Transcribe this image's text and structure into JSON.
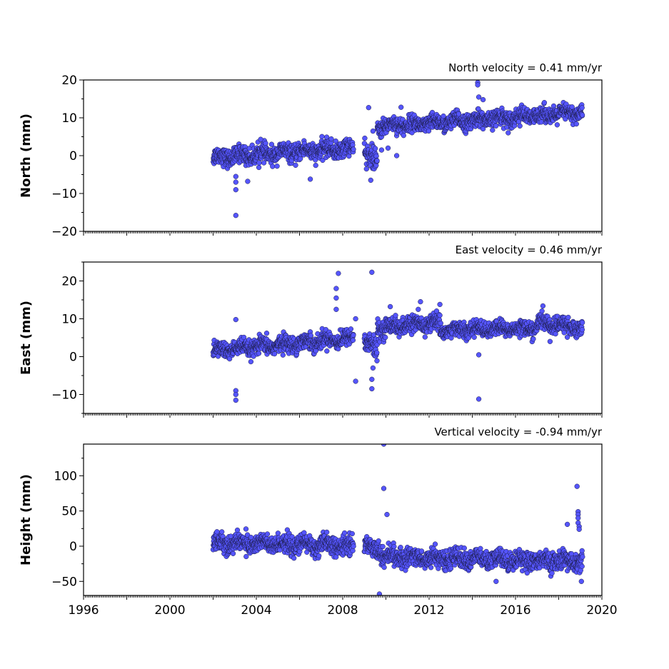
{
  "chart_data": [
    {
      "type": "scatter",
      "id": "north",
      "title": "North velocity = 0.41 mm/yr",
      "ylabel": "North (mm)",
      "xlim": [
        1996,
        2020
      ],
      "ylim": [
        -20,
        20
      ],
      "yticks": [
        20,
        10,
        0,
        -10,
        -20
      ],
      "ytick_labels": [
        "20",
        "10",
        "0",
        "−10",
        "−20"
      ],
      "xticks": [
        1996,
        1998,
        2000,
        2002,
        2004,
        2006,
        2008,
        2010,
        2012,
        2014,
        2016,
        2018,
        2020
      ],
      "xtick_labels": [],
      "grid": false,
      "segments": [
        {
          "t0": 2002.0,
          "t1": 2008.5,
          "v0": -0.5,
          "v1": 2.0,
          "noise": 1.4
        },
        {
          "t0": 2009.0,
          "t1": 2009.6,
          "v0": 0.0,
          "v1": -1.5,
          "noise": 1.8
        },
        {
          "t0": 2009.6,
          "t1": 2010.8,
          "v0": 7.5,
          "v1": 8.5,
          "noise": 1.3
        },
        {
          "t0": 2010.8,
          "t1": 2019.1,
          "v0": 8.0,
          "v1": 11.5,
          "noise": 1.3
        }
      ],
      "outliers": [
        {
          "x": 2003.05,
          "y": -15.8
        },
        {
          "x": 2003.05,
          "y": -9.0
        },
        {
          "x": 2003.05,
          "y": -7.0
        },
        {
          "x": 2003.05,
          "y": -5.5
        },
        {
          "x": 2003.6,
          "y": -6.8
        },
        {
          "x": 2004.2,
          "y": 4.3
        },
        {
          "x": 2006.5,
          "y": -6.2
        },
        {
          "x": 2009.1,
          "y": -3.5
        },
        {
          "x": 2009.2,
          "y": 12.7
        },
        {
          "x": 2009.3,
          "y": -6.5
        },
        {
          "x": 2009.4,
          "y": 6.5
        },
        {
          "x": 2009.8,
          "y": 1.5
        },
        {
          "x": 2010.1,
          "y": 2.0
        },
        {
          "x": 2010.5,
          "y": 0.0
        },
        {
          "x": 2010.7,
          "y": 12.8
        },
        {
          "x": 2014.25,
          "y": 19.3
        },
        {
          "x": 2014.25,
          "y": 18.7
        },
        {
          "x": 2014.3,
          "y": 15.5
        },
        {
          "x": 2014.5,
          "y": 14.8
        }
      ]
    },
    {
      "type": "scatter",
      "id": "east",
      "title": "East velocity = 0.46 mm/yr",
      "ylabel": "East (mm)",
      "xlim": [
        1996,
        2020
      ],
      "ylim": [
        -15,
        25
      ],
      "yticks": [
        20,
        10,
        0,
        -10
      ],
      "ytick_labels": [
        "20",
        "10",
        "0",
        "−10"
      ],
      "xticks": [
        1996,
        1998,
        2000,
        2002,
        2004,
        2006,
        2008,
        2010,
        2012,
        2014,
        2016,
        2018,
        2020
      ],
      "xtick_labels": [],
      "grid": false,
      "segments": [
        {
          "t0": 2002.0,
          "t1": 2008.5,
          "v0": 1.5,
          "v1": 5.0,
          "noise": 1.3
        },
        {
          "t0": 2009.0,
          "t1": 2009.6,
          "v0": 3.5,
          "v1": 2.0,
          "noise": 1.8
        },
        {
          "t0": 2009.6,
          "t1": 2012.5,
          "v0": 7.5,
          "v1": 9.0,
          "noise": 1.4
        },
        {
          "t0": 2012.5,
          "t1": 2017.0,
          "v0": 7.0,
          "v1": 7.5,
          "noise": 1.2
        },
        {
          "t0": 2017.0,
          "t1": 2019.1,
          "v0": 9.0,
          "v1": 7.5,
          "noise": 1.3
        }
      ],
      "outliers": [
        {
          "x": 2003.05,
          "y": 9.8
        },
        {
          "x": 2003.05,
          "y": -9.0
        },
        {
          "x": 2003.05,
          "y": -10.0
        },
        {
          "x": 2003.05,
          "y": -11.5
        },
        {
          "x": 2007.8,
          "y": 22.0
        },
        {
          "x": 2007.7,
          "y": 18.0
        },
        {
          "x": 2007.7,
          "y": 15.5
        },
        {
          "x": 2007.7,
          "y": 12.5
        },
        {
          "x": 2008.6,
          "y": -6.5
        },
        {
          "x": 2008.6,
          "y": 10.0
        },
        {
          "x": 2009.35,
          "y": 22.3
        },
        {
          "x": 2009.35,
          "y": -8.5
        },
        {
          "x": 2009.35,
          "y": -6.0
        },
        {
          "x": 2009.4,
          "y": -3.0
        },
        {
          "x": 2010.2,
          "y": 13.2
        },
        {
          "x": 2011.6,
          "y": 14.5
        },
        {
          "x": 2012.5,
          "y": 13.8
        },
        {
          "x": 2014.3,
          "y": -11.2
        },
        {
          "x": 2014.3,
          "y": 0.5
        },
        {
          "x": 2017.6,
          "y": 4.0
        }
      ]
    },
    {
      "type": "scatter",
      "id": "height",
      "title": "Vertical velocity = -0.94 mm/yr",
      "ylabel": "Height (mm)",
      "xlim": [
        1996,
        2020
      ],
      "ylim": [
        -70,
        145
      ],
      "yticks": [
        100,
        50,
        0,
        -50
      ],
      "ytick_labels": [
        "100",
        "50",
        "0",
        "−50"
      ],
      "xticks": [
        1996,
        1998,
        2000,
        2002,
        2004,
        2006,
        2008,
        2010,
        2012,
        2014,
        2016,
        2018,
        2020
      ],
      "xtick_labels": [
        "1996",
        "",
        "2000",
        "",
        "2004",
        "",
        "2008",
        "",
        "2012",
        "",
        "2016",
        "",
        "2020"
      ],
      "grid": false,
      "segments": [
        {
          "t0": 2002.0,
          "t1": 2008.5,
          "v0": 5.0,
          "v1": 0.0,
          "noise": 8.0
        },
        {
          "t0": 2009.0,
          "t1": 2009.8,
          "v0": 0.0,
          "v1": -5.0,
          "noise": 8.0
        },
        {
          "t0": 2009.8,
          "t1": 2019.1,
          "v0": -15.0,
          "v1": -22.0,
          "noise": 8.0
        }
      ],
      "outliers": [
        {
          "x": 2009.9,
          "y": 145.0
        },
        {
          "x": 2009.9,
          "y": 82.0
        },
        {
          "x": 2010.05,
          "y": 45.0
        },
        {
          "x": 2009.7,
          "y": -68.0
        },
        {
          "x": 2015.1,
          "y": -50.0
        },
        {
          "x": 2018.4,
          "y": 31.0
        },
        {
          "x": 2018.85,
          "y": 85.0
        },
        {
          "x": 2018.9,
          "y": 49.0
        },
        {
          "x": 2018.9,
          "y": 45.0
        },
        {
          "x": 2018.9,
          "y": 40.0
        },
        {
          "x": 2018.9,
          "y": 33.0
        },
        {
          "x": 2018.95,
          "y": 28.0
        },
        {
          "x": 2018.95,
          "y": 24.0
        },
        {
          "x": 2019.05,
          "y": -50.0
        }
      ]
    }
  ]
}
